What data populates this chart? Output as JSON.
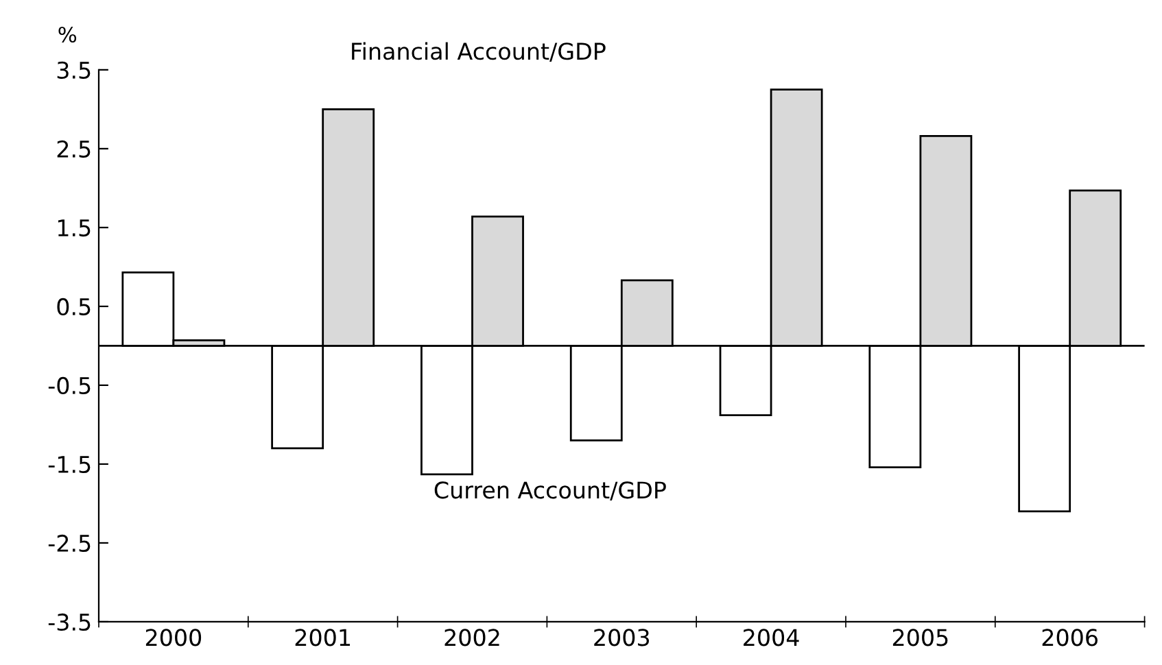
{
  "chart_data": {
    "type": "bar",
    "ylabel": "%",
    "categories": [
      "2000",
      "2001",
      "2002",
      "2003",
      "2004",
      "2005",
      "2006"
    ],
    "series": [
      {
        "name": "Curren Account/GDP",
        "color": "#ffffff",
        "values": [
          0.93,
          -1.3,
          -1.63,
          -1.2,
          -0.88,
          -1.54,
          -2.1
        ]
      },
      {
        "name": "Financial Account/GDP",
        "color": "#d9d9d9",
        "values": [
          0.07,
          3.0,
          1.64,
          0.83,
          3.25,
          2.66,
          1.97
        ]
      }
    ],
    "ylim": [
      -3.5,
      3.5
    ],
    "yticks": [
      -3.5,
      -2.5,
      -1.5,
      -0.5,
      0.5,
      1.5,
      2.5,
      3.5
    ],
    "ref_lines": [
      {
        "axis": "y",
        "value": 0
      }
    ],
    "grid": false,
    "legend": false
  }
}
